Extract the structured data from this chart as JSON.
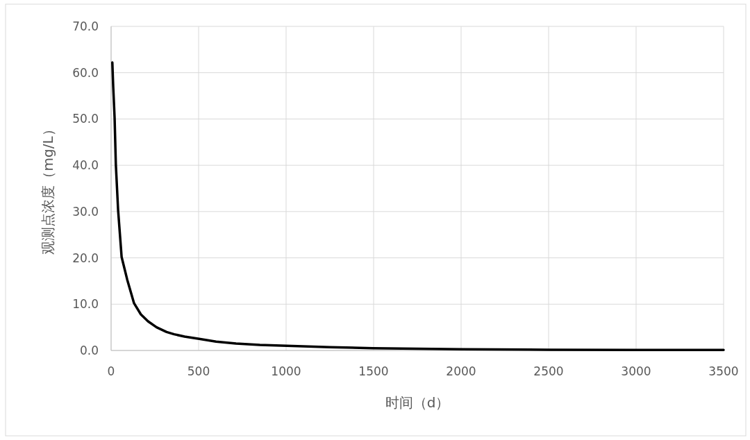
{
  "chart_data": {
    "type": "line",
    "xlabel": "时间（d）",
    "ylabel": "观测点浓度（mg/L）",
    "x": [
      7,
      12,
      20,
      27,
      40,
      60,
      92,
      131,
      170,
      211,
      260,
      317,
      360,
      420,
      503,
      600,
      714,
      850,
      1004,
      1250,
      1495,
      2004,
      2500,
      3000,
      3500
    ],
    "series": [
      {
        "color": "#000000",
        "values": [
          62.2,
          57,
          50.2,
          40.2,
          30.3,
          20.2,
          15.3,
          10.2,
          7.8,
          6.3,
          5.0,
          4.0,
          3.5,
          3.0,
          2.5,
          1.9,
          1.5,
          1.2,
          1.0,
          0.7,
          0.5,
          0.25,
          0.15,
          0.1,
          0.1
        ]
      }
    ],
    "xlim": [
      0,
      3500
    ],
    "xticks": [
      0,
      500,
      1000,
      1500,
      2000,
      2500,
      3000,
      3500
    ],
    "ylim": [
      0,
      70
    ],
    "yticks": [
      {
        "value": 0,
        "label": "0.0"
      },
      {
        "value": 10,
        "label": "10.0"
      },
      {
        "value": 20,
        "label": "20.0"
      },
      {
        "value": 30,
        "label": "30.0"
      },
      {
        "value": 40,
        "label": "40.0"
      },
      {
        "value": 50,
        "label": "50.0"
      },
      {
        "value": 60,
        "label": "60.0"
      },
      {
        "value": 70,
        "label": "70.0"
      }
    ],
    "grid": true,
    "marker": "none",
    "line_style": "solid"
  }
}
